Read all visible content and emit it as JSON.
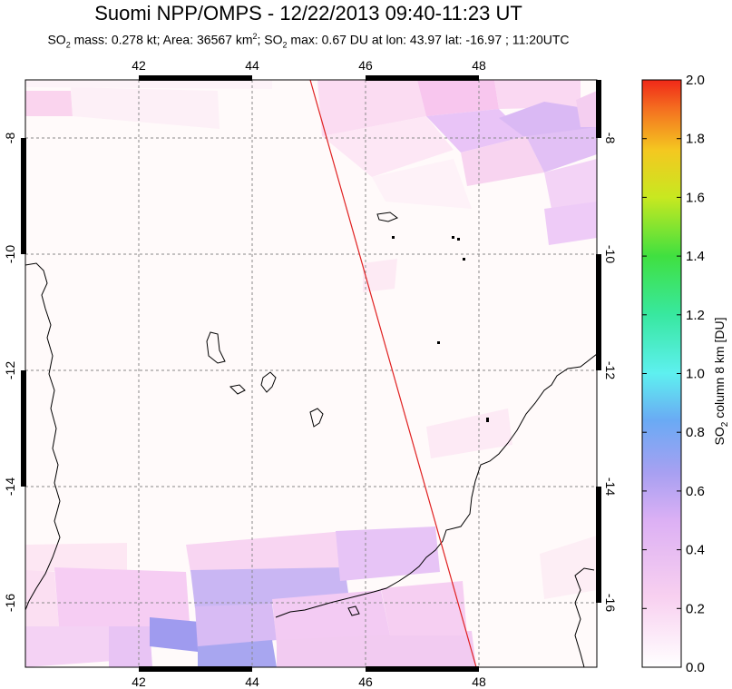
{
  "title": "Suomi NPP/OMPS - 12/22/2013 09:40-11:23 UT",
  "subtitle": {
    "mass_label": "SO",
    "mass_sub": "2",
    "mass_text": " mass: 0.278 kt; Area: 36567 km",
    "area_sup": "2",
    "max_label": "; SO",
    "max_sub": "2",
    "max_text": " max: 0.67 DU at lon: 43.97 lat: -16.97 ; 11:20UTC"
  },
  "map": {
    "lon_ticks": [
      "42",
      "44",
      "46",
      "48"
    ],
    "lat_ticks": [
      "-8",
      "-10",
      "-12",
      "-14",
      "-16"
    ],
    "lon_range": [
      40,
      50.2
    ],
    "lat_range": [
      -17,
      -7
    ]
  },
  "colorbar": {
    "label": "SO2 column 8 km [DU]",
    "label_main": "SO",
    "label_sub": "2",
    "label_rest": " column 8 km [DU]",
    "ticks": [
      "0.0",
      "0.2",
      "0.4",
      "0.6",
      "0.8",
      "1.0",
      "1.2",
      "1.4",
      "1.6",
      "1.8",
      "2.0"
    ],
    "range": [
      0,
      2
    ]
  },
  "colors": {
    "frame": "#000000",
    "grid": "#888888",
    "coast": "#000000",
    "swath_edge": "#e02020"
  }
}
